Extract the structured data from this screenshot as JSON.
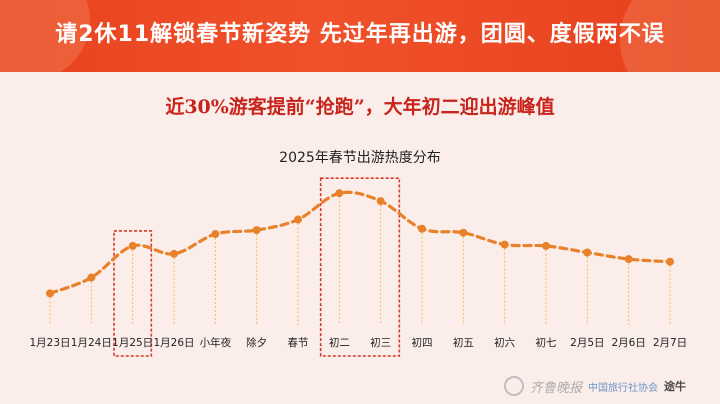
{
  "banner": {
    "title": "请2休11解锁春节新姿势  先过年再出游，团圆、度假两不误"
  },
  "headline": "近30%游客提前“抢跑”，大年初二迎出游峰值",
  "chart_data": {
    "type": "line",
    "title": "2025年春节出游热度分布",
    "categories": [
      "1月23日",
      "1月24日",
      "1月25日",
      "1月26日",
      "小年夜",
      "除夕",
      "春节",
      "初二",
      "初三",
      "初四",
      "初五",
      "初六",
      "初七",
      "2月5日",
      "2月6日",
      "2月7日"
    ],
    "series": [
      {
        "values": [
          24,
          36,
          60,
          54,
          69,
          72,
          80,
          100,
          94,
          73,
          70,
          61,
          60,
          55,
          50,
          48
        ]
      }
    ],
    "highlight_groups": [
      [
        "1月25日"
      ],
      [
        "初二",
        "初三"
      ]
    ],
    "ylim": [
      0,
      110
    ],
    "grid": false,
    "colors": {
      "line": "#e8822a",
      "drop": "#f2c36a",
      "box": "#d43a2a"
    }
  },
  "watermark": {
    "text": "齐鲁晚报",
    "org": "中国旅行社协会",
    "brand": "途牛"
  }
}
